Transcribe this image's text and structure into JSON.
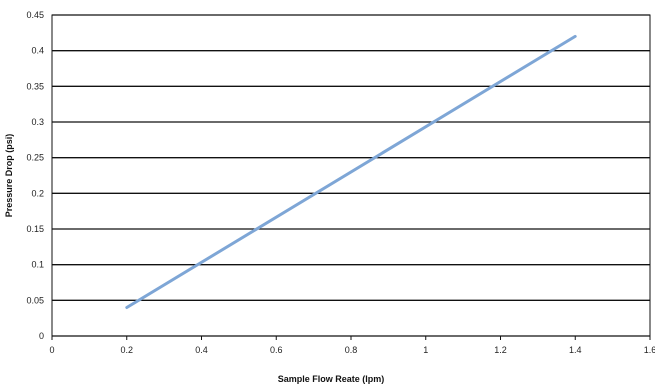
{
  "chart_data": {
    "type": "line",
    "title": "",
    "xlabel": "Sample Flow Reate (lpm)",
    "ylabel": "Pressure Drop (psi)",
    "xlim": [
      0,
      1.6
    ],
    "ylim": [
      0,
      0.45
    ],
    "x_ticks": [
      "0",
      "0.2",
      "0.4",
      "0.6",
      "0.8",
      "1",
      "1.2",
      "1.4",
      "1.6"
    ],
    "y_ticks": [
      "0",
      "0.05",
      "0.1",
      "0.15",
      "0.2",
      "0.25",
      "0.3",
      "0.35",
      "0.4",
      "0.45"
    ],
    "grid": "horizontal",
    "series": [
      {
        "color": "#7ea6d6",
        "x": [
          0.2,
          1.4
        ],
        "y": [
          0.04,
          0.42
        ]
      }
    ]
  }
}
